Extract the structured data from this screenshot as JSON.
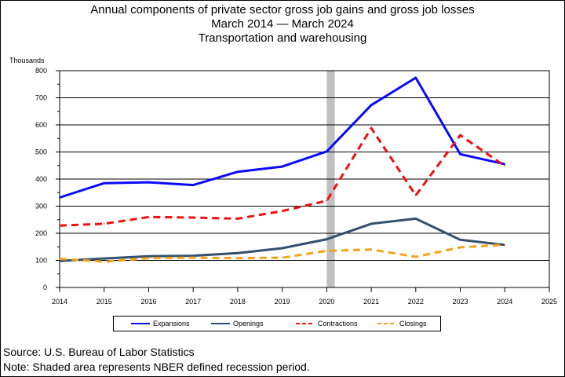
{
  "title": {
    "line1": "Annual components of private sector gross job gains and gross job losses",
    "line2": "March 2014 — March 2024",
    "line3": "Transportation and warehousing"
  },
  "footer": {
    "source": "Source: U.S. Bureau of Labor Statistics",
    "note": "Note: Shaded area represents NBER defined recession period."
  },
  "chart_data": {
    "type": "line",
    "ylabel": "Thousands",
    "xlim": [
      2014,
      2025
    ],
    "ylim": [
      0,
      800
    ],
    "x_ticks": [
      2014,
      2015,
      2016,
      2017,
      2018,
      2019,
      2020,
      2021,
      2022,
      2023,
      2024,
      2025
    ],
    "y_ticks": [
      0,
      100,
      200,
      300,
      400,
      500,
      600,
      700,
      800
    ],
    "grid": "horizontal",
    "recession": [
      2020.0,
      2020.18
    ],
    "x": [
      2014,
      2015,
      2016,
      2017,
      2018,
      2019,
      2020,
      2021,
      2022,
      2023,
      2024
    ],
    "series": [
      {
        "name": "Expansions",
        "color": "#0a0aff",
        "dash": "solid",
        "values": [
          332,
          385,
          388,
          378,
          427,
          446,
          502,
          673,
          774,
          492,
          455
        ]
      },
      {
        "name": "Openings",
        "color": "#33506e",
        "dash": "solid",
        "values": [
          98,
          107,
          115,
          117,
          127,
          145,
          178,
          235,
          254,
          176,
          157
        ]
      },
      {
        "name": "Contractions",
        "color": "#f00f0f",
        "dash": "dashed",
        "values": [
          228,
          235,
          260,
          258,
          254,
          282,
          320,
          588,
          340,
          562,
          448
        ]
      },
      {
        "name": "Closings",
        "color": "#f5a21a",
        "dash": "dashed",
        "values": [
          106,
          95,
          108,
          110,
          108,
          110,
          135,
          140,
          113,
          148,
          158
        ]
      }
    ]
  }
}
